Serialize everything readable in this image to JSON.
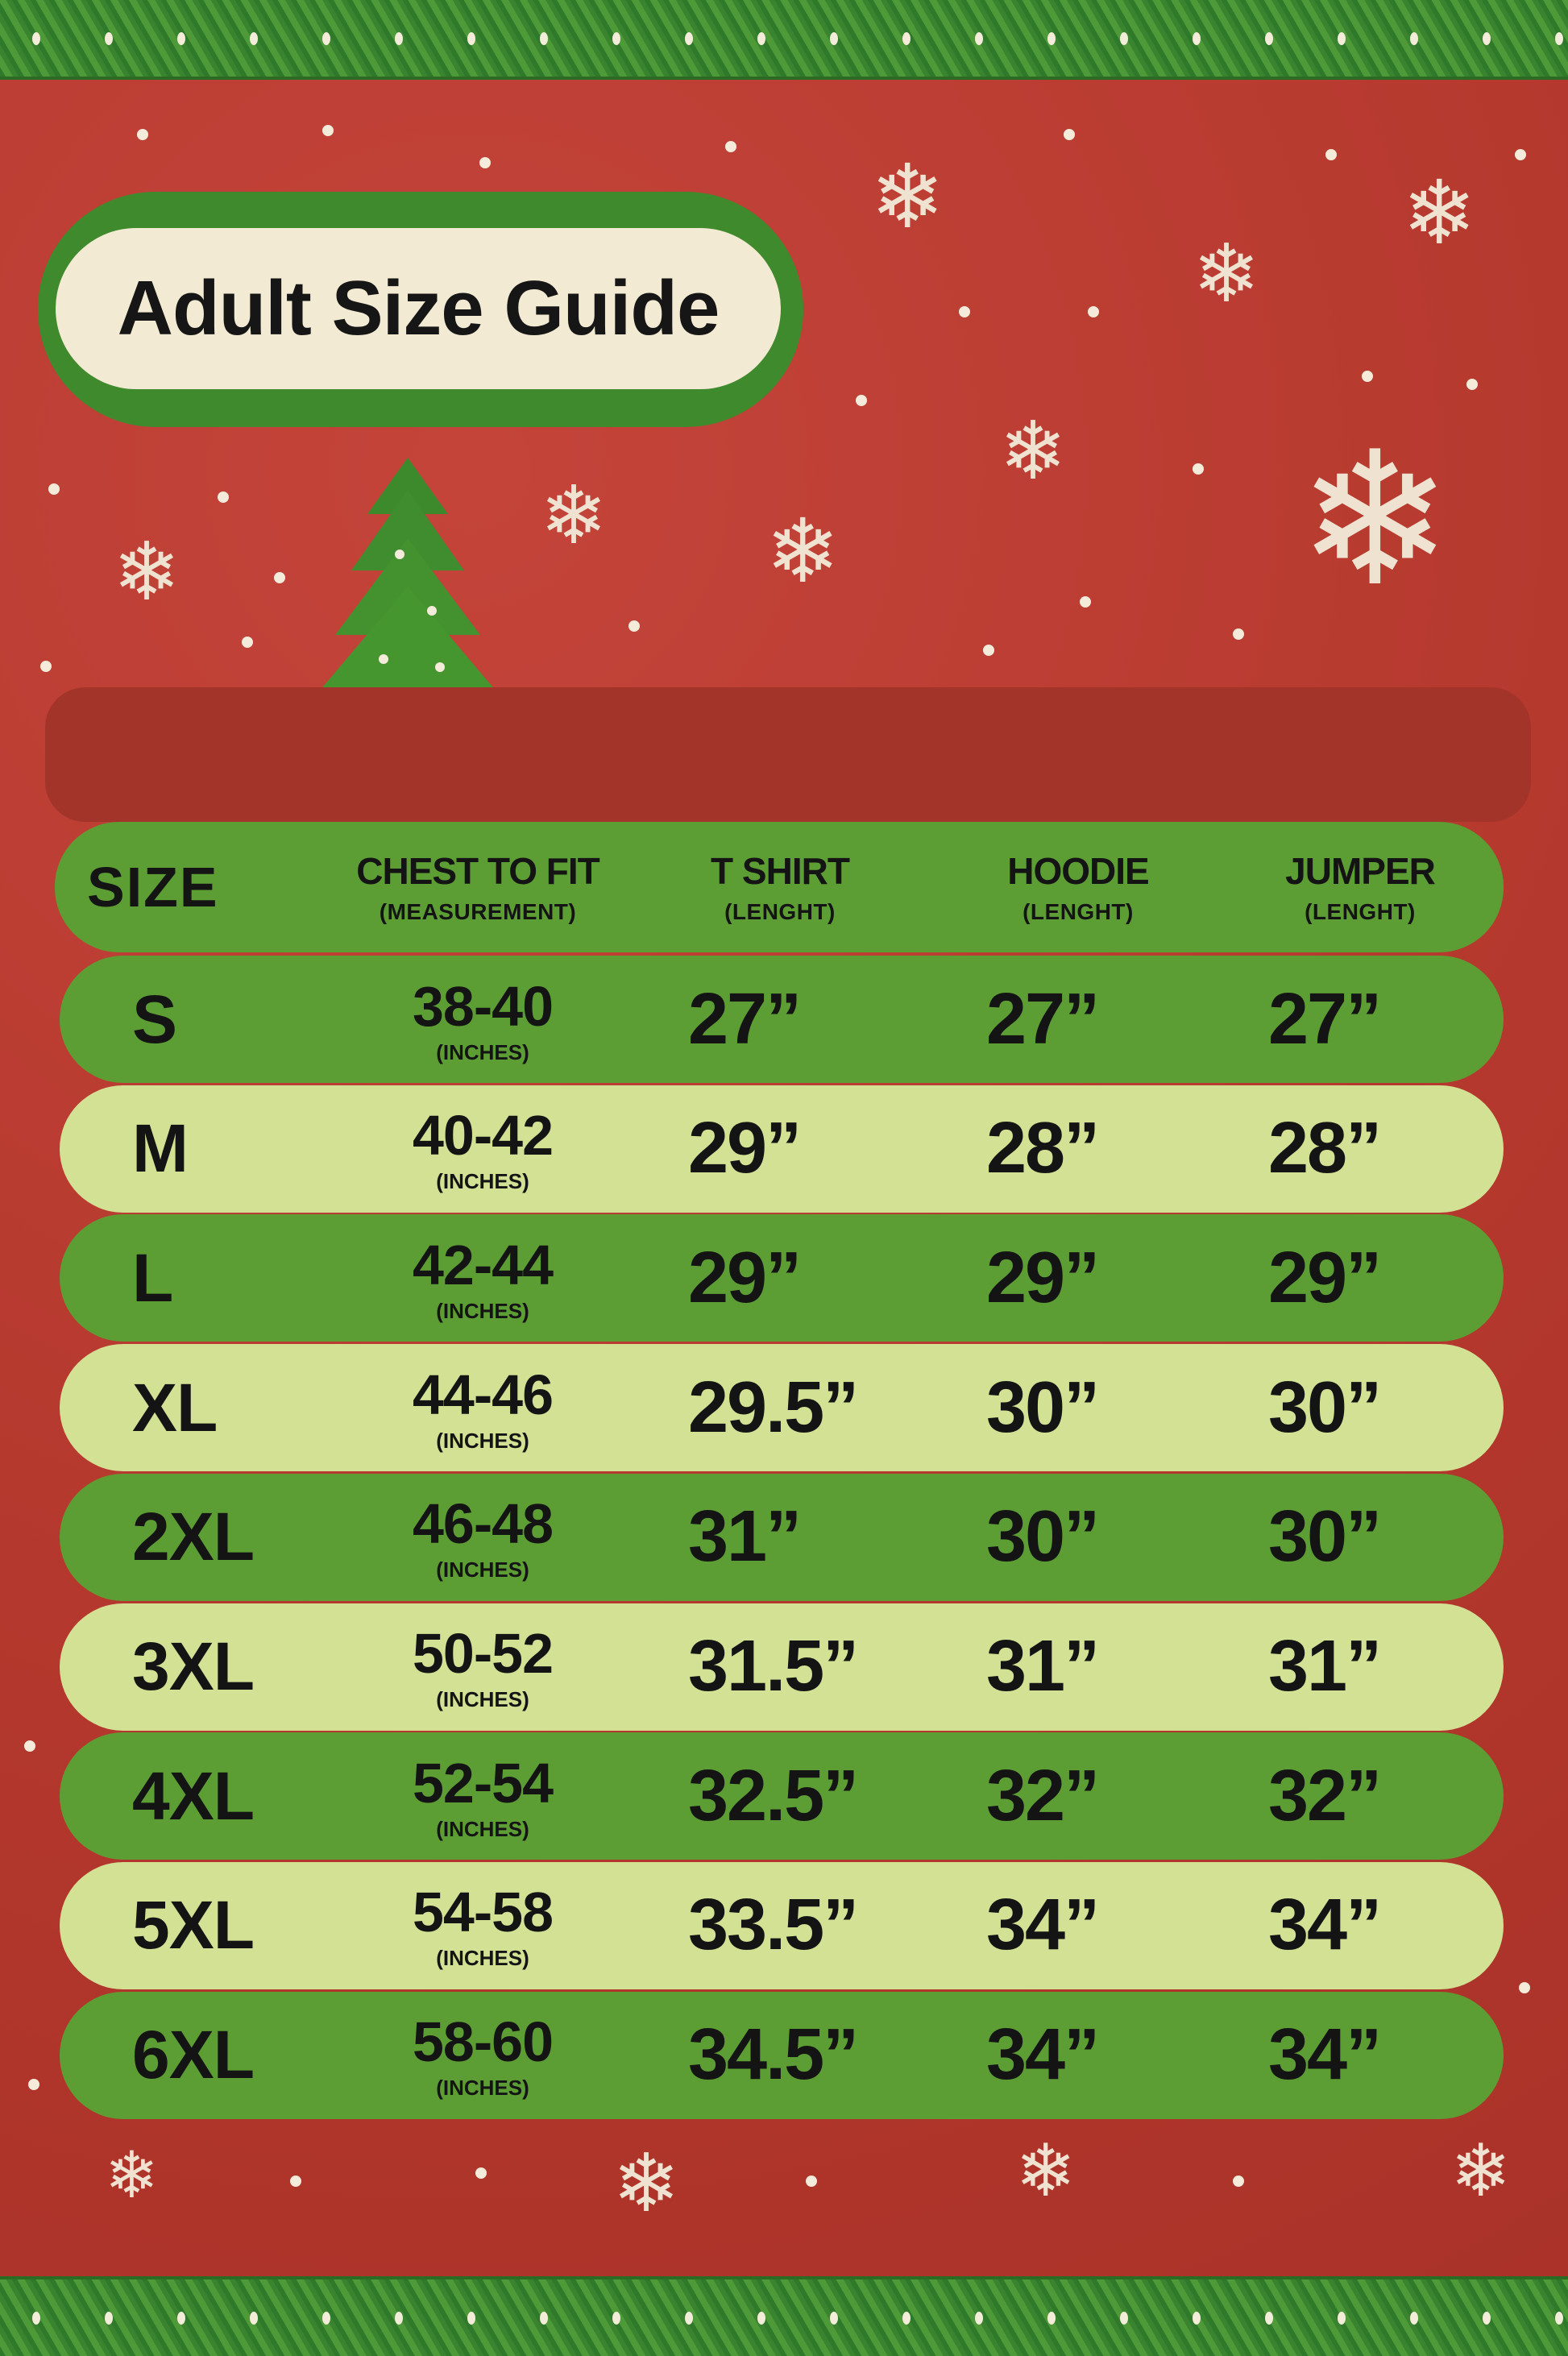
{
  "title": "Adult Size Guide",
  "colors": {
    "background_red": "#b83a2e",
    "dark_row_green": "#5d9e34",
    "light_row_green": "#d3e194",
    "title_cream": "#f3ead3"
  },
  "table": {
    "headers": [
      {
        "label": "SIZE",
        "sub": ""
      },
      {
        "label": "CHEST TO FIT",
        "sub": "(MEASUREMENT)"
      },
      {
        "label": "T SHIRT",
        "sub": "(LENGHT)"
      },
      {
        "label": "HOODIE",
        "sub": "(LENGHT)"
      },
      {
        "label": "JUMPER",
        "sub": "(LENGHT)"
      }
    ],
    "unit_note": "(INCHES)",
    "rows": [
      {
        "size": "S",
        "chest": "38-40",
        "tshirt": "27”",
        "hoodie": "27”",
        "jumper": "27”"
      },
      {
        "size": "M",
        "chest": "40-42",
        "tshirt": "29”",
        "hoodie": "28”",
        "jumper": "28”"
      },
      {
        "size": "L",
        "chest": "42-44",
        "tshirt": "29”",
        "hoodie": "29”",
        "jumper": "29”"
      },
      {
        "size": "XL",
        "chest": "44-46",
        "tshirt": "29.5”",
        "hoodie": "30”",
        "jumper": "30”"
      },
      {
        "size": "2XL",
        "chest": "46-48",
        "tshirt": "31”",
        "hoodie": "30”",
        "jumper": "30”"
      },
      {
        "size": "3XL",
        "chest": "50-52",
        "tshirt": "31.5”",
        "hoodie": "31”",
        "jumper": "31”"
      },
      {
        "size": "4XL",
        "chest": "52-54",
        "tshirt": "32.5”",
        "hoodie": "32”",
        "jumper": "32”"
      },
      {
        "size": "5XL",
        "chest": "54-58",
        "tshirt": "33.5”",
        "hoodie": "34”",
        "jumper": "34”"
      },
      {
        "size": "6XL",
        "chest": "58-60",
        "tshirt": "34.5”",
        "hoodie": "34”",
        "jumper": "34”"
      }
    ]
  }
}
